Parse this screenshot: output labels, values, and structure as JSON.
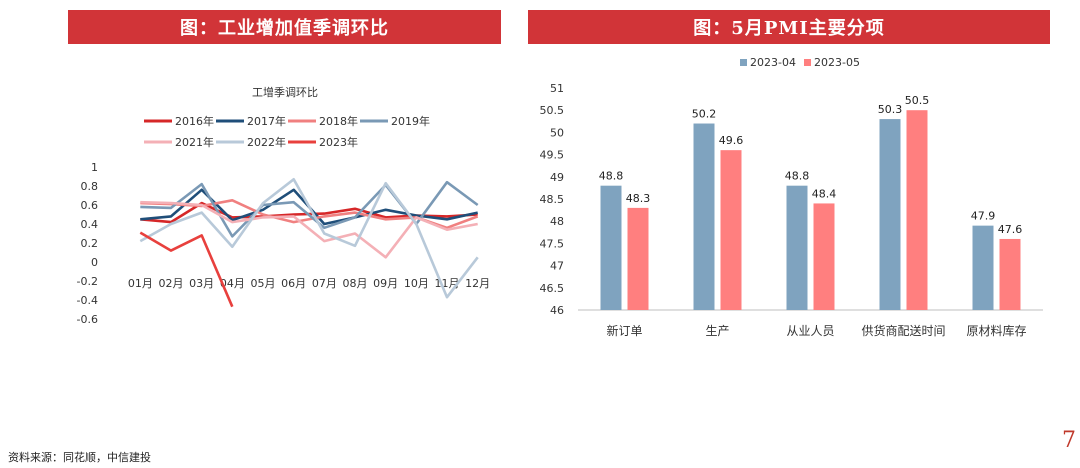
{
  "headers": {
    "left": "图：工业增加值季调环比",
    "right": "图：5月PMI主要分项"
  },
  "footer": {
    "source": "资料来源：同花顺，中信建投"
  },
  "page_number": "7",
  "chart_data": [
    {
      "type": "line",
      "title": "工增季调环比",
      "categories": [
        "01月",
        "02月",
        "03月",
        "04月",
        "05月",
        "06月",
        "07月",
        "08月",
        "09月",
        "10月",
        "11月",
        "12月"
      ],
      "y_ticks": [
        "1",
        "0.8",
        "0.6",
        "0.4",
        "0.2",
        "0",
        "-0.2",
        "-0.4",
        "-0.6"
      ],
      "ylim": [
        -0.6,
        1.0
      ],
      "legend_position": "top",
      "series": [
        {
          "name": "2016年",
          "color": "#d62728",
          "values": [
            0.45,
            0.42,
            0.62,
            0.47,
            0.48,
            0.5,
            0.51,
            0.56,
            0.47,
            0.49,
            0.48,
            0.5
          ]
        },
        {
          "name": "2017年",
          "color": "#1f4e79",
          "values": [
            0.45,
            0.48,
            0.76,
            0.44,
            0.55,
            0.76,
            0.4,
            0.47,
            0.55,
            0.49,
            0.45,
            0.52
          ]
        },
        {
          "name": "2018年",
          "color": "#f08080",
          "values": [
            0.62,
            0.61,
            0.59,
            0.65,
            0.5,
            0.42,
            0.48,
            0.52,
            0.45,
            0.47,
            0.36,
            0.48
          ]
        },
        {
          "name": "2019年",
          "color": "#7a99b5",
          "values": [
            0.58,
            0.57,
            0.82,
            0.27,
            0.6,
            0.63,
            0.36,
            0.47,
            0.81,
            0.4,
            0.84,
            0.6
          ]
        },
        {
          "name": "2021年",
          "color": "#f4b0b6",
          "values": [
            0.63,
            0.62,
            0.6,
            0.42,
            0.47,
            0.48,
            0.22,
            0.3,
            0.05,
            0.47,
            0.34,
            0.4
          ]
        },
        {
          "name": "2022年",
          "color": "#b8c9d9",
          "values": [
            0.22,
            0.4,
            0.52,
            0.16,
            0.62,
            0.87,
            0.3,
            0.17,
            0.83,
            0.4,
            -0.37,
            0.05
          ]
        },
        {
          "name": "2023年",
          "color": "#e8403d",
          "values": [
            0.31,
            0.12,
            0.28,
            -0.47,
            null,
            null,
            null,
            null,
            null,
            null,
            null,
            null
          ]
        }
      ]
    },
    {
      "type": "bar",
      "categories": [
        "新订单",
        "生产",
        "从业人员",
        "供货商配送时间",
        "原材料库存"
      ],
      "y_ticks": [
        "51",
        "50.5",
        "50",
        "49.5",
        "49",
        "48.5",
        "48",
        "47.5",
        "47",
        "46.5",
        "46"
      ],
      "ylim": [
        46,
        51
      ],
      "legend_position": "top",
      "series": [
        {
          "name": "2023-04",
          "color": "#7fa3bf",
          "values": [
            48.8,
            50.2,
            48.8,
            50.3,
            47.9
          ],
          "labels": [
            "48.8",
            "50.2",
            "48.8",
            "50.3",
            "47.9"
          ]
        },
        {
          "name": "2023-05",
          "color": "#ff7f7f",
          "values": [
            48.3,
            49.6,
            48.4,
            50.5,
            47.6
          ],
          "labels": [
            "48.3",
            "49.6",
            "48.4",
            "50.5",
            "47.6"
          ]
        }
      ]
    }
  ]
}
